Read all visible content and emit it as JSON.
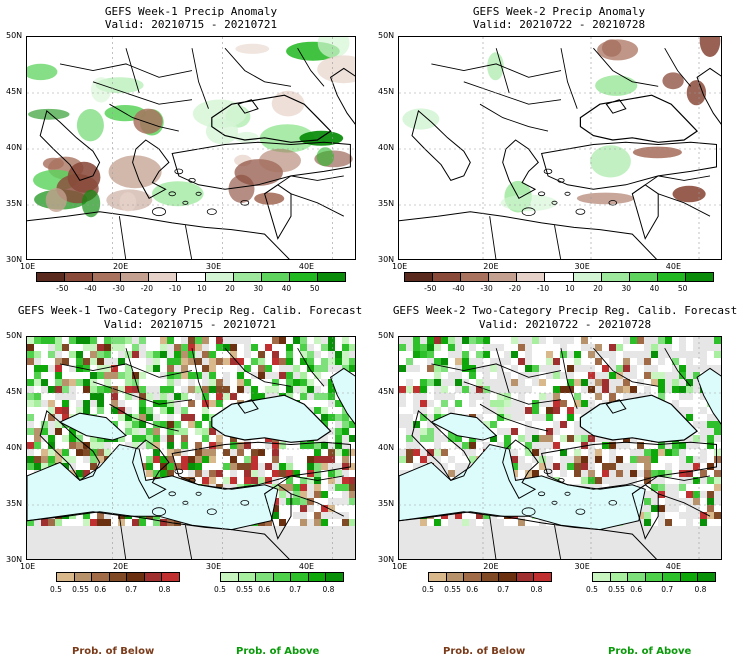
{
  "panels": [
    {
      "title": "GEFS Week-1 Precip Anomaly",
      "valid": "Valid: 20210715 - 20210721"
    },
    {
      "title": "GEFS Week-2 Precip Anomaly",
      "valid": "Valid: 20210722 - 20210728"
    },
    {
      "title": "GEFS Week-1 Two-Category Precip Reg. Calib. Forecast",
      "valid": "Valid: 20210715 - 20210721"
    },
    {
      "title": "GEFS Week-2 Two-Category Precip Reg. Calib. Forecast",
      "valid": "Valid: 20210722 - 20210728"
    }
  ],
  "lat_labels": [
    "50N",
    "45N",
    "40N",
    "35N",
    "30N"
  ],
  "lon_labels": [
    "10E",
    "20E",
    "30E",
    "40E"
  ],
  "anomaly_colorbar": {
    "labels": [
      "-50",
      "-40",
      "-30",
      "-20",
      "-10",
      "10",
      "20",
      "30",
      "40",
      "50"
    ],
    "colors": [
      "#5a2a1e",
      "#8a4a3a",
      "#a8725f",
      "#c4a090",
      "#e6d2c8",
      "#ffffff",
      "#d4f5d4",
      "#9ee89e",
      "#5ed45e",
      "#22b822",
      "#0a8c0a"
    ]
  },
  "below_colorbar": {
    "labels": [
      "0.5",
      "0.55",
      "0.6",
      "0.7",
      "0.8"
    ],
    "colors": [
      "#d9b98c",
      "#b8926a",
      "#a06b46",
      "#7f4a25",
      "#6b3010",
      "#a03030",
      "#c03030"
    ]
  },
  "above_colorbar": {
    "labels": [
      "0.5",
      "0.55",
      "0.6",
      "0.7",
      "0.8"
    ],
    "colors": [
      "#c8f5c0",
      "#a8f0a0",
      "#7de07a",
      "#4ed04a",
      "#2ec02a",
      "#0ea80a",
      "#089008"
    ]
  },
  "legend": {
    "below": "Prob. of Below",
    "above": "Prob. of Above",
    "below_color": "#7a3b1a",
    "above_color": "#0a9a0a"
  },
  "colors": {
    "sea": "#dcfcfc",
    "land_gray": "#e6e6e6"
  }
}
